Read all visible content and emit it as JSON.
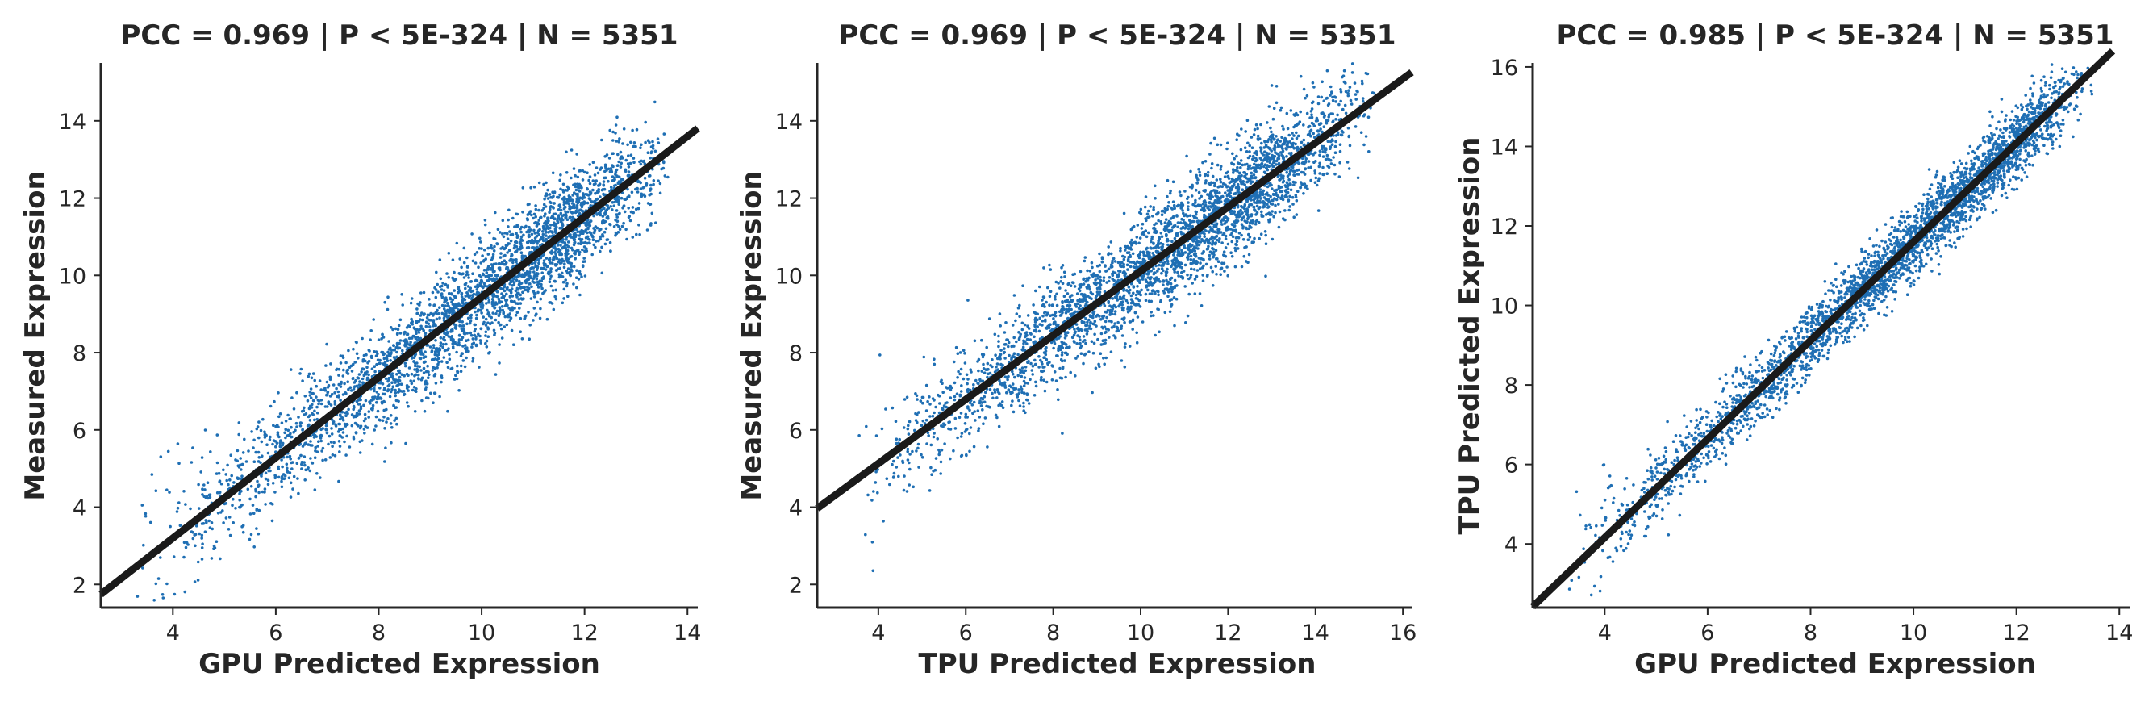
{
  "chart_data": [
    {
      "type": "scatter",
      "title": "PCC =  0.969 | P <  5E-324 | N = 5351",
      "xlabel": "GPU Predicted Expression",
      "ylabel": "Measured Expression",
      "xlim": [
        2.6,
        14.2
      ],
      "ylim": [
        1.4,
        15.5
      ],
      "xticks": [
        "4",
        "6",
        "8",
        "10",
        "12",
        "14"
      ],
      "yticks": [
        "2",
        "4",
        "6",
        "8",
        "10",
        "12",
        "14"
      ],
      "pcc": 0.969,
      "n": 5351,
      "fit_line": {
        "slope": 1.04,
        "intercept": -0.96
      },
      "point_model": {
        "x_range": [
          3.2,
          13.7
        ],
        "x_mode": 11.8,
        "resid_sd": 0.7
      },
      "point_color": "#1f6fb4",
      "grid": false,
      "legend": "none"
    },
    {
      "type": "scatter",
      "title": "PCC =  0.969 | P <  5E-324 | N = 5351",
      "xlabel": "TPU Predicted Expression",
      "ylabel": "Measured Expression",
      "xlim": [
        2.6,
        16.2
      ],
      "ylim": [
        1.4,
        15.5
      ],
      "xticks": [
        "4",
        "6",
        "8",
        "10",
        "12",
        "14",
        "16"
      ],
      "yticks": [
        "2",
        "4",
        "6",
        "8",
        "10",
        "12",
        "14"
      ],
      "pcc": 0.969,
      "n": 5351,
      "fit_line": {
        "slope": 0.83,
        "intercept": 1.81
      },
      "point_model": {
        "x_range": [
          3.3,
          15.4
        ],
        "x_mode": 12.8,
        "resid_sd": 0.7
      },
      "point_color": "#1f6fb4",
      "grid": false,
      "legend": "none"
    },
    {
      "type": "scatter",
      "title": "PCC =  0.985 | P <  5E-324 | N = 5351",
      "xlabel": "GPU Predicted Expression",
      "ylabel": "TPU Predicted Expression",
      "xlim": [
        2.6,
        14.2
      ],
      "ylim": [
        2.4,
        16.1
      ],
      "xticks": [
        "4",
        "6",
        "8",
        "10",
        "12",
        "14"
      ],
      "yticks": [
        "4",
        "6",
        "8",
        "10",
        "12",
        "14",
        "16"
      ],
      "pcc": 0.985,
      "n": 5351,
      "fit_line": {
        "slope": 1.24,
        "intercept": -0.8
      },
      "point_model": {
        "x_range": [
          3.2,
          13.5
        ],
        "x_mode": 11.8,
        "resid_sd": 0.45
      },
      "point_color": "#1f6fb4",
      "grid": false,
      "legend": "none"
    }
  ]
}
